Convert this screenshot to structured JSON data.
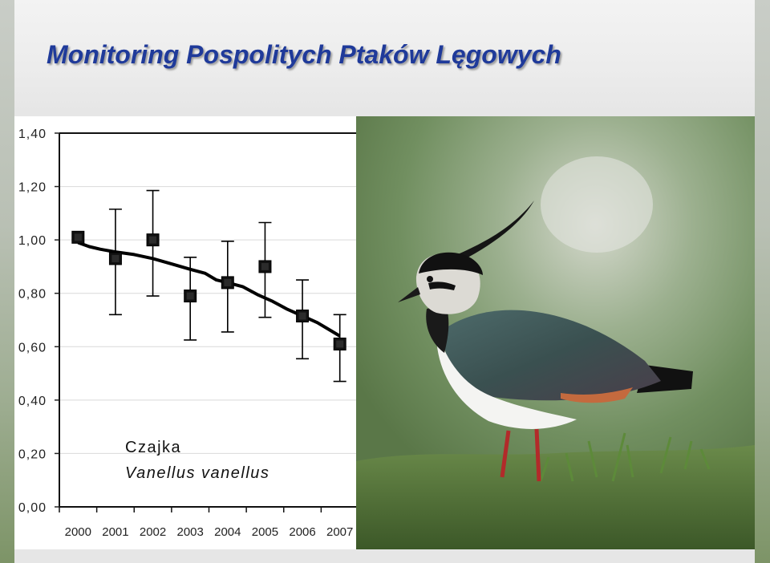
{
  "title": "Monitoring Pospolitych Ptaków Lęgowych",
  "chart_data": {
    "type": "line",
    "title": "",
    "xlabel": "",
    "ylabel": "",
    "annotation": [
      "Czajka",
      "Vanellus vanellus"
    ],
    "x": [
      "2000",
      "2001",
      "2002",
      "2003",
      "2004",
      "2005",
      "2006",
      "2007"
    ],
    "yticks": [
      "0,00",
      "0,20",
      "0,40",
      "0,60",
      "0,80",
      "1,00",
      "1,20",
      "1,40"
    ],
    "ylim": [
      0,
      1.4
    ],
    "grid": true,
    "series": [
      {
        "kind": "points-with-error-bars",
        "values": [
          1.01,
          0.93,
          1.0,
          0.79,
          0.84,
          0.9,
          0.715,
          0.61
        ],
        "error_low": [
          null,
          0.72,
          0.79,
          0.625,
          0.655,
          0.71,
          0.555,
          0.47
        ],
        "error_high": [
          null,
          1.115,
          1.185,
          0.935,
          0.995,
          1.065,
          0.85,
          0.72
        ]
      },
      {
        "kind": "trend-line",
        "x": [
          2000.0,
          2000.3,
          2000.6,
          2001.0,
          2001.5,
          2002.0,
          2002.5,
          2003.0,
          2003.4,
          2003.7,
          2004.0,
          2004.4,
          2004.8,
          2005.2,
          2005.6,
          2006.0,
          2006.4,
          2006.7,
          2007.0
        ],
        "values": [
          0.99,
          0.975,
          0.965,
          0.955,
          0.945,
          0.93,
          0.91,
          0.89,
          0.875,
          0.85,
          0.84,
          0.825,
          0.795,
          0.77,
          0.74,
          0.715,
          0.69,
          0.665,
          0.64
        ]
      }
    ]
  },
  "photo": {
    "subject": "Northern lapwing photo",
    "colors": {
      "background": "#8fa584",
      "grass": "#4d6b35",
      "back": "#3f5a55",
      "breast": "#222222",
      "belly": "#f4f4f2",
      "head": "#dcdad4",
      "legs": "#b22a2a"
    }
  }
}
